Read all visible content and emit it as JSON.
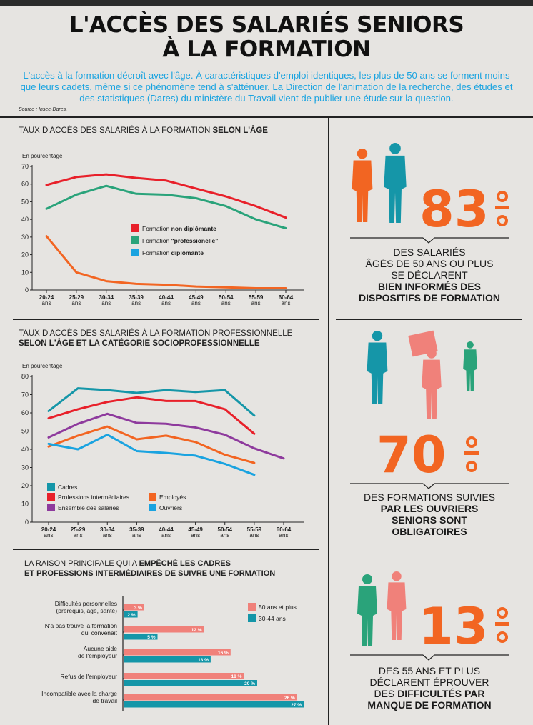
{
  "header": {
    "title_line1": "L'ACCÈS DES SALARIÉS SENIORS",
    "title_line2": "À LA FORMATION",
    "intro": "L'accès à la formation décroît avec l'âge. À caractéristiques d'emploi identiques, les plus de 50 ans se forment moins que leurs cadets, même si ce phénomène tend à s'atténuer. La Direction de l'animation de la recherche, des études et des statistiques (Dares) du ministère du Travail vient de publier une étude sur la question.",
    "source": "Source : Insee-Dares."
  },
  "chart_data": [
    {
      "type": "line",
      "title_prefix": "TAUX D'ACCÈS DES SALARIÉS À LA FORMATION ",
      "title_bold": "SELON L'ÂGE",
      "ylabel": "En pourcentage",
      "ylim": [
        0,
        70
      ],
      "yticks": [
        0,
        10,
        20,
        30,
        40,
        50,
        60,
        70
      ],
      "categories": [
        [
          "20-24",
          "ans"
        ],
        [
          "25-29",
          "ans"
        ],
        [
          "30-34",
          "ans"
        ],
        [
          "35-39",
          "ans"
        ],
        [
          "40-44",
          "ans"
        ],
        [
          "45-49",
          "ans"
        ],
        [
          "50-54",
          "ans"
        ],
        [
          "55-59",
          "ans"
        ],
        [
          "60-64",
          "ans"
        ]
      ],
      "series": [
        {
          "name_prefix": "Formation ",
          "name_bold": "non diplômante",
          "color": "#e8202a",
          "values": [
            59.5,
            64,
            65.5,
            63.5,
            62,
            57.5,
            53,
            47.5,
            41
          ]
        },
        {
          "name_prefix": "Formation ",
          "name_bold": "\"professionelle\"",
          "color": "#2aa37a",
          "values": [
            46,
            54,
            59,
            54.5,
            54,
            52,
            47.5,
            40,
            35
          ]
        },
        {
          "name_prefix": "Formation ",
          "name_bold": "diplômante",
          "color": "#1aa3e0",
          "values": [
            null,
            null,
            null,
            null,
            null,
            null,
            null,
            null,
            null
          ]
        },
        {
          "name_prefix": "",
          "name_bold": "",
          "color": "#f26522",
          "values": [
            30.5,
            10,
            5,
            3.5,
            3,
            2,
            1.5,
            1,
            1
          ]
        }
      ]
    },
    {
      "type": "line",
      "title_line1": "TAUX D'ACCÈS DES SALARIÉS À LA FORMATION PROFESSIONNELLE",
      "title_line2": "SELON L'ÂGE ET LA CATÉGORIE SOCIOPROFESSIONNELLE",
      "ylabel": "En pourcentage",
      "ylim": [
        0,
        80
      ],
      "yticks": [
        0,
        10,
        20,
        30,
        40,
        50,
        60,
        70,
        80
      ],
      "categories": [
        [
          "20-24",
          "ans"
        ],
        [
          "25-29",
          "ans"
        ],
        [
          "30-34",
          "ans"
        ],
        [
          "35-39",
          "ans"
        ],
        [
          "40-44",
          "ans"
        ],
        [
          "45-49",
          "ans"
        ],
        [
          "50-54",
          "ans"
        ],
        [
          "55-59",
          "ans"
        ],
        [
          "60-64",
          "ans"
        ]
      ],
      "series": [
        {
          "name": "Cadres",
          "color": "#1596a8",
          "values": [
            61,
            73.5,
            72.5,
            71,
            72.5,
            71.5,
            72.5,
            58.5,
            null
          ]
        },
        {
          "name": "Professions intermédiaires",
          "color": "#e8202a",
          "values": [
            57,
            62,
            66,
            68.5,
            66.5,
            66.5,
            62,
            48.5,
            null
          ]
        },
        {
          "name": "Employés",
          "color": "#f26522",
          "values": [
            41.5,
            47.5,
            52.5,
            45.5,
            47.5,
            44,
            37,
            32.5,
            null
          ]
        },
        {
          "name": "Ensemble des salariés",
          "color": "#8e3a9d",
          "values": [
            46.5,
            54,
            59.5,
            54.5,
            54,
            52,
            48,
            40.5,
            35
          ]
        },
        {
          "name": "Ouvriers",
          "color": "#1aa3e0",
          "values": [
            43,
            40,
            48,
            39,
            38,
            36.5,
            32,
            26,
            null
          ]
        }
      ]
    },
    {
      "type": "bar",
      "title_line1_prefix": "LA RAISON PRINCIPALE QUI A ",
      "title_line1_bold": "EMPÊCHÉ LES CADRES",
      "title_line2": "ET PROFESSIONS INTERMÉDIAIRES DE SUIVRE UNE FORMATION",
      "categories": [
        [
          "Difficultés personnelles",
          "(prérequis, âge, santé)"
        ],
        [
          "N'a pas trouvé la formation",
          "qui convenait"
        ],
        [
          "Aucune aide",
          "de l'employeur"
        ],
        [
          "Refus de l'employeur"
        ],
        [
          "Incompatible avec la charge",
          "de travail"
        ]
      ],
      "series": [
        {
          "name": "50 ans et plus",
          "color": "#f0817a",
          "values": [
            3,
            12,
            16,
            18,
            26
          ]
        },
        {
          "name": "30-44 ans",
          "color": "#1596a8",
          "values": [
            2,
            5,
            13,
            20,
            27
          ]
        }
      ],
      "value_suffix": "%"
    }
  ],
  "stats": [
    {
      "number": "83",
      "percent_color": "#f26522",
      "lines": [
        "DES SALARIÉS",
        "ÂGÉS DE 50 ANS OU PLUS",
        "SE DÉCLARENT"
      ],
      "bold": [
        "BIEN INFORMÉS DES",
        "DISPOSITIFS DE FORMATION"
      ]
    },
    {
      "number": "70",
      "percent_color": "#f26522",
      "lines": [
        "DES FORMATIONS SUIVIES"
      ],
      "bold": [
        "PAR LES OUVRIERS",
        "SENIORS SONT",
        "OBLIGATOIRES"
      ]
    },
    {
      "number": "13",
      "percent_color": "#f26522",
      "lines": [
        "DES 55 ANS ET PLUS",
        "DÉCLARENT ÉPROUVER"
      ],
      "prefix": "DES ",
      "bold_inline": "DIFFICULTÉS PAR",
      "bold": [
        "MANQUE DE FORMATION"
      ]
    }
  ],
  "colors": {
    "orange": "#f26522",
    "teal": "#1596a8",
    "salmon": "#f0817a",
    "green": "#2aa37a",
    "blue": "#1aa3e0"
  },
  "icons": [
    "silhouette-woman-icon",
    "silhouette-officer-icon",
    "silhouette-worker-icon",
    "silhouette-mover-icon",
    "silhouette-sitting-icon",
    "silhouette-couple-icon"
  ]
}
